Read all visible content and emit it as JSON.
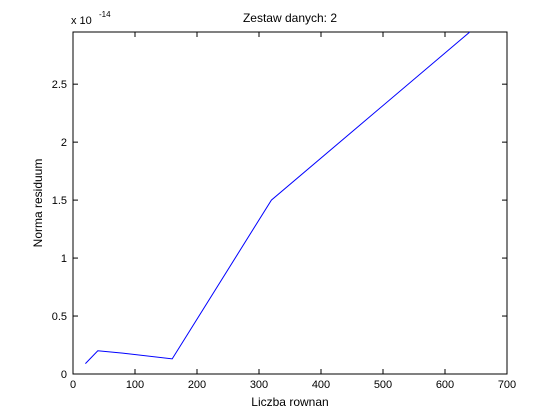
{
  "chart_data": {
    "type": "line",
    "title": "Zestaw danych: 2",
    "xlabel": "Liczba rownan",
    "ylabel": "Norma residuum",
    "exponent_base": "x 10",
    "exponent_power": "-14",
    "xlim": [
      0,
      700
    ],
    "ylim": [
      0,
      2.95
    ],
    "xticks": [
      0,
      100,
      200,
      300,
      400,
      500,
      600,
      700
    ],
    "xtick_labels": [
      "0",
      "100",
      "200",
      "300",
      "400",
      "500",
      "600",
      "700"
    ],
    "yticks": [
      0,
      0.5,
      1,
      1.5,
      2,
      2.5
    ],
    "ytick_labels": [
      "0",
      "0.5",
      "1",
      "1.5",
      "2",
      "2.5"
    ],
    "grid": false,
    "series": [
      {
        "color": "#0000ff",
        "x": [
          20,
          40,
          80,
          160,
          320,
          640
        ],
        "y": [
          0.09,
          0.2,
          0.18,
          0.13,
          1.5,
          2.95
        ]
      }
    ]
  }
}
